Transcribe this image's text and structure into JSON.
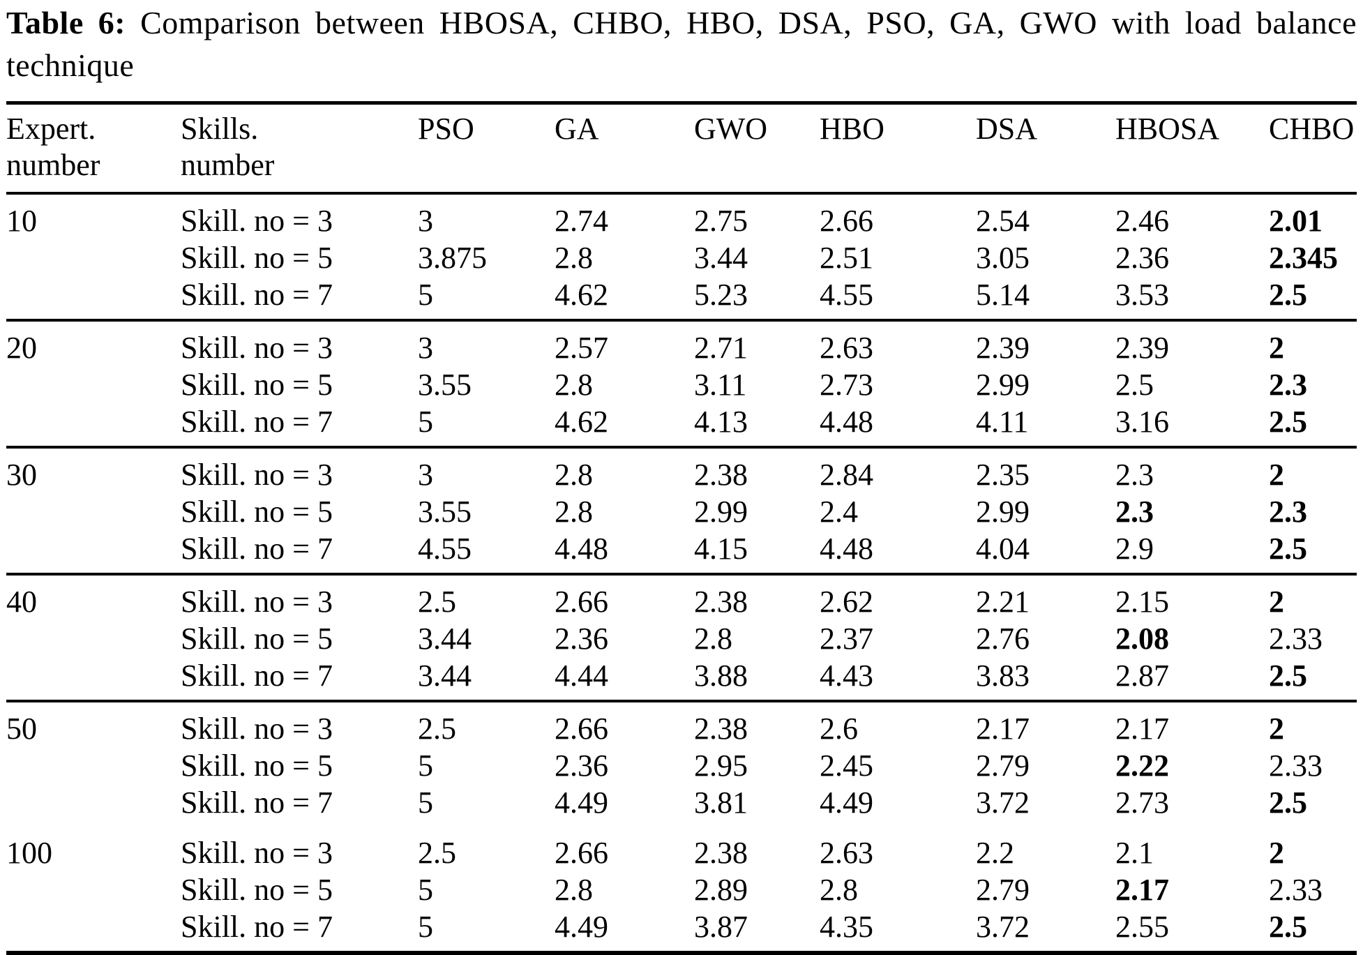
{
  "caption": {
    "label": "Table 6:",
    "text": "Comparison between HBOSA, CHBO, HBO, DSA, PSO, GA, GWO with load balance technique"
  },
  "table": {
    "headers": [
      [
        "Expert.",
        "number"
      ],
      [
        "Skills.",
        "number"
      ],
      [
        "PSO"
      ],
      [
        "GA"
      ],
      [
        "GWO"
      ],
      [
        "HBO"
      ],
      [
        "DSA"
      ],
      [
        "HBOSA"
      ],
      [
        "CHBO"
      ]
    ],
    "algorithms": [
      "PSO",
      "GA",
      "GWO",
      "HBO",
      "DSA",
      "HBOSA",
      "CHBO"
    ],
    "groups": [
      {
        "expert": "10",
        "rule_above": false,
        "rows": [
          {
            "skills": "Skill. no = 3",
            "values": [
              "3",
              "2.74",
              "2.75",
              "2.66",
              "2.54",
              "2.46",
              "2.01"
            ],
            "bold": [
              6
            ]
          },
          {
            "skills": "Skill. no = 5",
            "values": [
              "3.875",
              "2.8",
              "3.44",
              "2.51",
              "3.05",
              "2.36",
              "2.345"
            ],
            "bold": [
              6
            ]
          },
          {
            "skills": "Skill. no = 7",
            "values": [
              "5",
              "4.62",
              "5.23",
              "4.55",
              "5.14",
              "3.53",
              "2.5"
            ],
            "bold": [
              6
            ]
          }
        ]
      },
      {
        "expert": "20",
        "rule_above": true,
        "rows": [
          {
            "skills": "Skill. no = 3",
            "values": [
              "3",
              "2.57",
              "2.71",
              "2.63",
              "2.39",
              "2.39",
              "2"
            ],
            "bold": [
              6
            ]
          },
          {
            "skills": "Skill. no = 5",
            "values": [
              "3.55",
              "2.8",
              "3.11",
              "2.73",
              "2.99",
              "2.5",
              "2.3"
            ],
            "bold": [
              6
            ]
          },
          {
            "skills": "Skill. no = 7",
            "values": [
              "5",
              "4.62",
              "4.13",
              "4.48",
              "4.11",
              "3.16",
              "2.5"
            ],
            "bold": [
              6
            ]
          }
        ]
      },
      {
        "expert": "30",
        "rule_above": true,
        "rows": [
          {
            "skills": "Skill. no = 3",
            "values": [
              "3",
              "2.8",
              "2.38",
              "2.84",
              "2.35",
              "2.3",
              "2"
            ],
            "bold": [
              6
            ]
          },
          {
            "skills": "Skill. no = 5",
            "values": [
              "3.55",
              "2.8",
              "2.99",
              "2.4",
              "2.99",
              "2.3",
              "2.3"
            ],
            "bold": [
              5,
              6
            ]
          },
          {
            "skills": "Skill. no = 7",
            "values": [
              "4.55",
              "4.48",
              "4.15",
              "4.48",
              "4.04",
              "2.9",
              "2.5"
            ],
            "bold": [
              6
            ]
          }
        ]
      },
      {
        "expert": "40",
        "rule_above": true,
        "rows": [
          {
            "skills": "Skill. no = 3",
            "values": [
              "2.5",
              "2.66",
              "2.38",
              "2.62",
              "2.21",
              "2.15",
              "2"
            ],
            "bold": [
              6
            ]
          },
          {
            "skills": "Skill. no = 5",
            "values": [
              "3.44",
              "2.36",
              "2.8",
              "2.37",
              "2.76",
              "2.08",
              "2.33"
            ],
            "bold": [
              5
            ]
          },
          {
            "skills": "Skill. no = 7",
            "values": [
              "3.44",
              "4.44",
              "3.88",
              "4.43",
              "3.83",
              "2.87",
              "2.5"
            ],
            "bold": [
              6
            ]
          }
        ]
      },
      {
        "expert": "50",
        "rule_above": true,
        "rows": [
          {
            "skills": "Skill. no = 3",
            "values": [
              "2.5",
              "2.66",
              "2.38",
              "2.6",
              "2.17",
              "2.17",
              "2"
            ],
            "bold": [
              6
            ]
          },
          {
            "skills": "Skill. no = 5",
            "values": [
              "5",
              "2.36",
              "2.95",
              "2.45",
              "2.79",
              "2.22",
              "2.33"
            ],
            "bold": [
              5
            ]
          },
          {
            "skills": "Skill. no = 7",
            "values": [
              "5",
              "4.49",
              "3.81",
              "4.49",
              "3.72",
              "2.73",
              "2.5"
            ],
            "bold": [
              6
            ]
          }
        ]
      },
      {
        "expert": "100",
        "rule_above": false,
        "rows": [
          {
            "skills": "Skill. no = 3",
            "values": [
              "2.5",
              "2.66",
              "2.38",
              "2.63",
              "2.2",
              "2.1",
              "2"
            ],
            "bold": [
              6
            ]
          },
          {
            "skills": "Skill. no = 5",
            "values": [
              "5",
              "2.8",
              "2.89",
              "2.8",
              "2.79",
              "2.17",
              "2.33"
            ],
            "bold": [
              5
            ]
          },
          {
            "skills": "Skill. no = 7",
            "values": [
              "5",
              "4.49",
              "3.87",
              "4.35",
              "3.72",
              "2.55",
              "2.5"
            ],
            "bold": [
              6
            ]
          }
        ]
      }
    ]
  }
}
